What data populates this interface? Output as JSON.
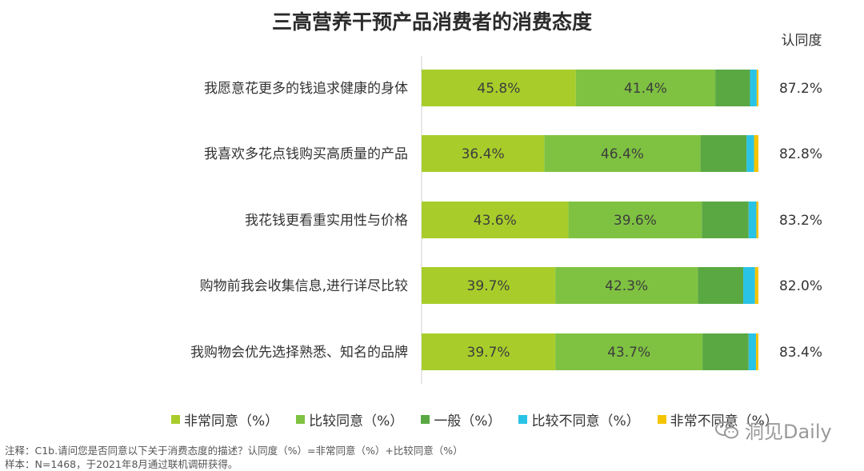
{
  "title": "三高营养干预产品消费者的消费态度",
  "rate_header": "认同度",
  "colors": {
    "strongly_agree": "#a8cd2a",
    "agree": "#7fc241",
    "neutral": "#5aa842",
    "disagree": "#29c3e6",
    "strongly_disagree": "#f5c400"
  },
  "legend": [
    {
      "label": "非常同意（%）",
      "color": "#a8cd2a"
    },
    {
      "label": "比较同意（%）",
      "color": "#7fc241"
    },
    {
      "label": "一般（%）",
      "color": "#5aa842"
    },
    {
      "label": "比较不同意（%）",
      "color": "#29c3e6"
    },
    {
      "label": "非常不同意（%）",
      "color": "#f5c400"
    }
  ],
  "chart_data": {
    "type": "bar",
    "orientation": "horizontal",
    "stacked": true,
    "title": "三高营养干预产品消费者的消费态度",
    "categories": [
      "我愿意花更多的钱追求健康的身体",
      "我喜欢多花点钱购买高质量的产品",
      "我花钱更看重实用性与价格",
      "购物前我会收集信息,进行详尽比较",
      "我购物会优先选择熟悉、知名的品牌"
    ],
    "series": [
      {
        "name": "非常同意（%）",
        "values": [
          45.8,
          36.4,
          43.6,
          39.7,
          39.7
        ],
        "labels": [
          "45.8%",
          "36.4%",
          "43.6%",
          "39.7%",
          "39.7%"
        ]
      },
      {
        "name": "比较同意（%）",
        "values": [
          41.4,
          46.4,
          39.6,
          42.3,
          43.7
        ],
        "labels": [
          "41.4%",
          "46.4%",
          "39.6%",
          "42.3%",
          "43.7%"
        ]
      },
      {
        "name": "一般（%）",
        "values": [
          10.3,
          13.7,
          13.9,
          13.5,
          13.7
        ]
      },
      {
        "name": "比较不同意（%）",
        "values": [
          2.0,
          2.2,
          2.3,
          3.5,
          2.2
        ]
      },
      {
        "name": "非常不同意（%）",
        "values": [
          0.5,
          1.3,
          0.6,
          1.0,
          0.7
        ]
      }
    ],
    "agreement_rate": [
      "87.2%",
      "82.8%",
      "83.2%",
      "82.0%",
      "83.4%"
    ],
    "xlim": [
      0,
      100
    ]
  },
  "notes": {
    "line1": "注释：C1b.请问您是否同意以下关于消费态度的描述？认同度（%）=非常同意（%）+比较同意（%）",
    "line2": "样本：N=1468，于2021年8月通过联机调研获得。"
  },
  "watermark": "洞见Daily",
  "watermark_icon": "wechat-icon"
}
